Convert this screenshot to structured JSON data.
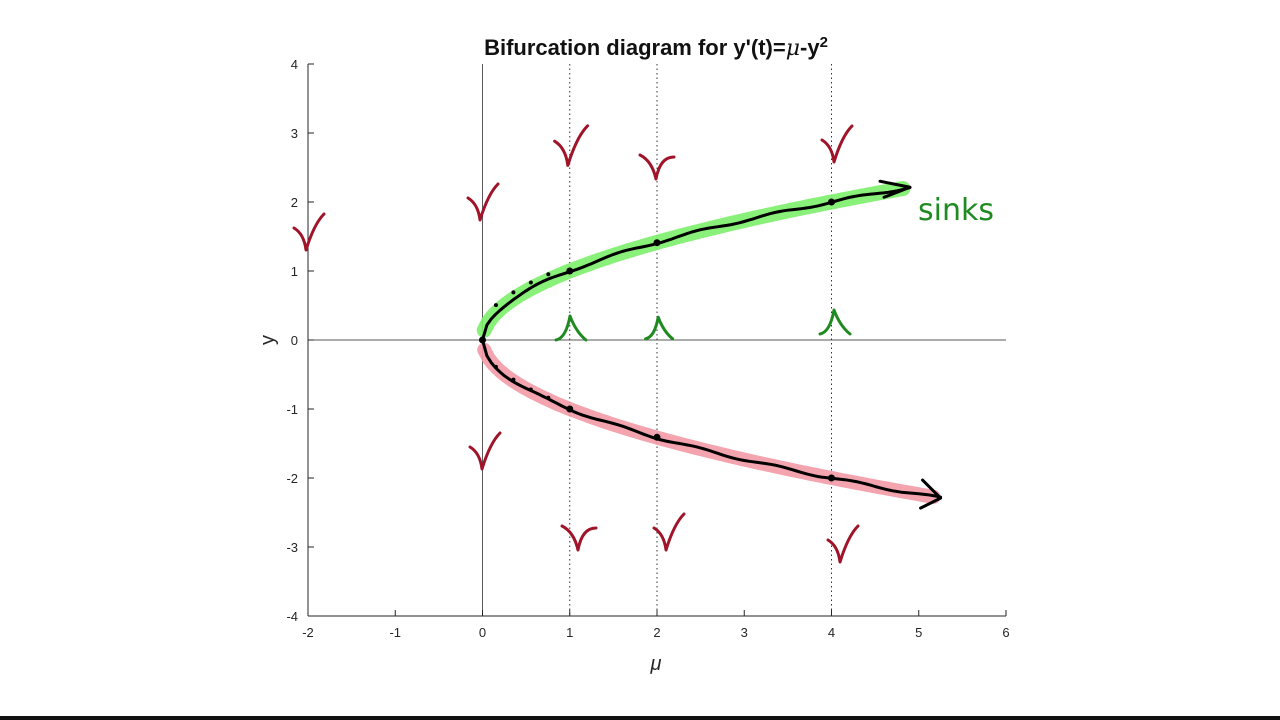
{
  "chart_data": {
    "type": "line",
    "title_main": "Bifurcation diagram for y'(t)=",
    "title_mu": "μ",
    "title_rest": "-y",
    "title_sup": "2",
    "xlabel": "μ",
    "ylabel": "y",
    "xlim": [
      -2,
      6
    ],
    "ylim": [
      -4,
      4
    ],
    "xticks": [
      "-2",
      "-1",
      "0",
      "1",
      "2",
      "3",
      "4",
      "5",
      "6"
    ],
    "yticks": [
      "-4",
      "-3",
      "-2",
      "-1",
      "0",
      "1",
      "2",
      "3",
      "4"
    ],
    "grid": false,
    "dotted_lines_x": [
      1,
      2,
      4
    ],
    "points": [
      {
        "x": 0,
        "y": 0
      },
      {
        "x": 1,
        "y": 1
      },
      {
        "x": 2,
        "y": 1.41
      },
      {
        "x": 4,
        "y": 2
      },
      {
        "x": 1,
        "y": -1
      },
      {
        "x": 2,
        "y": -1.41
      },
      {
        "x": 4,
        "y": -2
      }
    ],
    "annotations": [
      {
        "text": "sinks",
        "color": "#1f8a1f"
      }
    ],
    "colors": {
      "stable_highlight": "#7cf06a",
      "unstable_highlight": "#f29aa6",
      "ink": "#000000",
      "red_marks": "#a0142a",
      "green_marks": "#1f8a1f"
    }
  }
}
